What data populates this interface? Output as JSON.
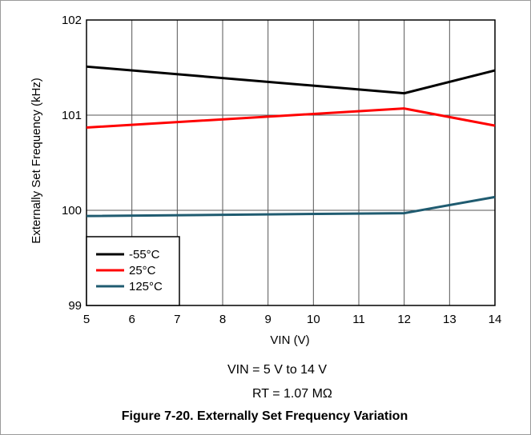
{
  "figure": {
    "conditions": [
      "VIN = 5 V to 14 V",
      "RT = 1.07 MΩ"
    ],
    "caption": "Figure 7-20. Externally Set Frequency Variation"
  },
  "chart_data": {
    "type": "line",
    "title": "",
    "xlabel": "VIN (V)",
    "ylabel": "Externally Set Frequency (kHz)",
    "xlim": [
      5,
      14
    ],
    "ylim": [
      99,
      102
    ],
    "xticks": [
      5,
      6,
      7,
      8,
      9,
      10,
      11,
      12,
      13,
      14
    ],
    "yticks": [
      99,
      100,
      101,
      102
    ],
    "grid": true,
    "legend_position": "bottom-left",
    "series": [
      {
        "name": "-55°C",
        "color": "#000000",
        "x": [
          5,
          12,
          14
        ],
        "y": [
          101.51,
          101.23,
          101.47
        ]
      },
      {
        "name": "25°C",
        "color": "#ff0000",
        "x": [
          5,
          12,
          14
        ],
        "y": [
          100.87,
          101.07,
          100.89
        ]
      },
      {
        "name": "125°C",
        "color": "#1f5b70",
        "x": [
          5,
          12,
          14
        ],
        "y": [
          99.94,
          99.97,
          100.14
        ]
      }
    ]
  }
}
